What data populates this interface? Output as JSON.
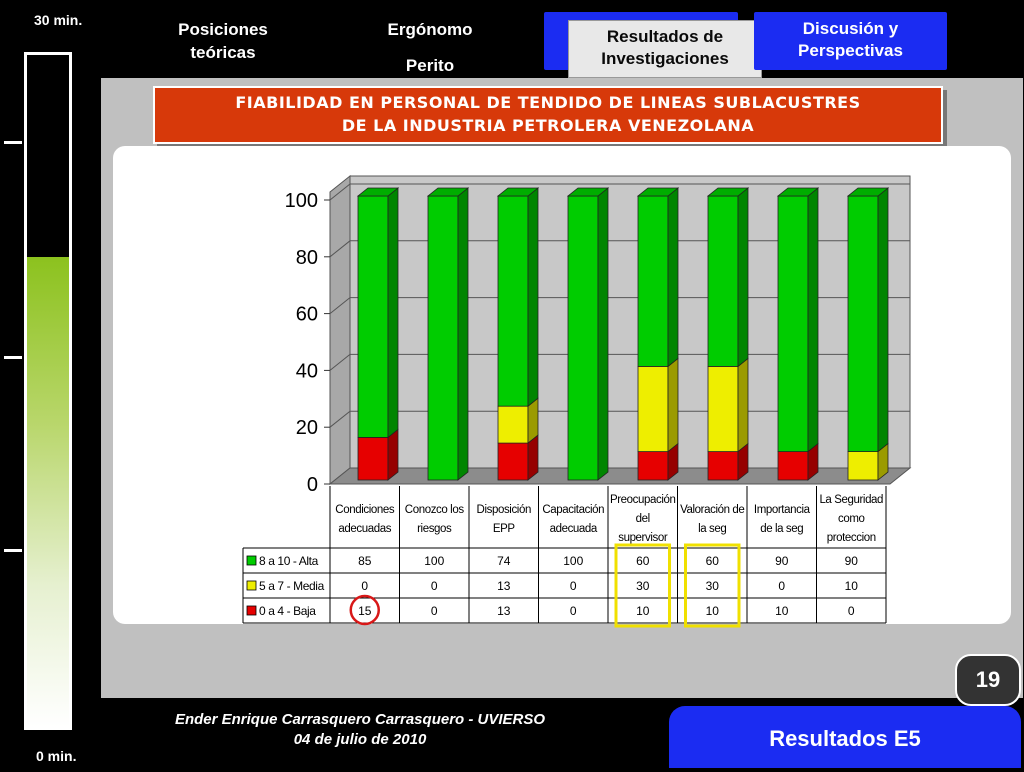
{
  "timer": {
    "top_label": "30 min.",
    "bottom_label": "0 min.",
    "level": 0.7
  },
  "nav": {
    "item1": "Posiciones teóricas",
    "item2": "Ergónomo",
    "item2_sub": "Perito",
    "active_tab": "Resultados de Investigaciones",
    "item4": "Discusión y Perspectivas"
  },
  "title": {
    "line1": "FIABILIDAD EN PERSONAL DE TENDIDO DE LINEAS SUBLACUSTRES",
    "line2": "DE LA INDUSTRIA PETROLERA VENEZOLANA"
  },
  "footer": {
    "author": "Ender Enrique Carrasquero Carrasquero - UVIERSO",
    "date": "04 de julio de 2010"
  },
  "page_number": "19",
  "results_button": "Resultados E5",
  "chart_data": {
    "type": "bar",
    "stacked": true,
    "three_d": true,
    "categories": [
      [
        "Condiciones",
        "adecuadas"
      ],
      [
        "Conozco los",
        "riesgos"
      ],
      [
        "Disposición",
        "EPP"
      ],
      [
        "Capacitación",
        "adecuada"
      ],
      [
        "Preocupación",
        "del",
        "supervisor"
      ],
      [
        "Valoración de",
        "la seg"
      ],
      [
        "Importancia",
        "de la seg"
      ],
      [
        "La Seguridad",
        "como",
        "proteccion"
      ]
    ],
    "series": [
      {
        "name": "8 a 10 - Alta",
        "color": "#00cc00",
        "values": [
          85,
          100,
          74,
          100,
          60,
          60,
          90,
          90
        ]
      },
      {
        "name": "5 a 7 - Media",
        "color": "#eeee00",
        "values": [
          0,
          0,
          13,
          0,
          30,
          30,
          0,
          10
        ]
      },
      {
        "name": "0 a 4 - Baja",
        "color": "#e60000",
        "values": [
          15,
          0,
          13,
          0,
          10,
          10,
          10,
          0
        ]
      }
    ],
    "ylim": [
      0,
      100
    ],
    "yticks": [
      0,
      20,
      40,
      60,
      80,
      100
    ],
    "data_table": true,
    "highlight_color": "#f0e000",
    "circle_color": "#d81818"
  }
}
